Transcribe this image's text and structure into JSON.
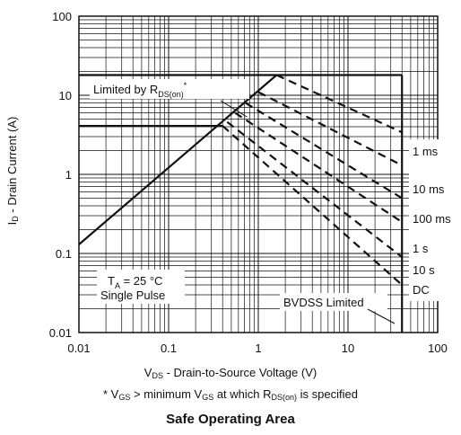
{
  "chart_data": {
    "type": "line",
    "title": "",
    "caption": "Safe Operating Area",
    "xlabel": {
      "var": "V",
      "sub": "DS",
      "text": " - Drain-to-Source Voltage (V)"
    },
    "ylabel": {
      "var": "I",
      "sub": "D",
      "text": " - Drain Current (A)"
    },
    "footnote": {
      "p1": "* V",
      "s1": "GS",
      "p2": " > minimum V",
      "s2": "GS",
      "p3": " at which R",
      "s3": "DS(on)",
      "p4": " is specified"
    },
    "x_scale": "log",
    "y_scale": "log",
    "xlim": [
      0.01,
      100
    ],
    "ylim": [
      0.01,
      100
    ],
    "grid": true,
    "x_ticks": [
      0.01,
      0.1,
      1,
      10,
      100
    ],
    "x_tick_labels": [
      "0.01",
      "0.1",
      "1",
      "10",
      "100"
    ],
    "y_ticks": [
      0.01,
      0.1,
      1,
      10,
      100
    ],
    "y_tick_labels": [
      "0.01",
      "0.1",
      "1",
      "10",
      "100"
    ],
    "series": [
      {
        "name": "Limited by RDS(on)",
        "style": "solid",
        "points": [
          [
            0.01,
            0.13
          ],
          [
            1.6,
            18
          ]
        ]
      },
      {
        "name": "1 ms",
        "style": "dashed",
        "points": [
          [
            1.6,
            18
          ],
          [
            40,
            3.4
          ]
        ]
      },
      {
        "name": "10 ms",
        "style": "dashed",
        "points": [
          [
            1.0,
            11
          ],
          [
            40,
            1.3
          ]
        ]
      },
      {
        "name": "100 ms",
        "style": "dashed",
        "points": [
          [
            0.72,
            8
          ],
          [
            40,
            0.5
          ]
        ]
      },
      {
        "name": "1 s",
        "style": "dashed",
        "points": [
          [
            0.55,
            6
          ],
          [
            40,
            0.25
          ]
        ]
      },
      {
        "name": "10 s",
        "style": "dashed",
        "points": [
          [
            0.45,
            4.6
          ],
          [
            40,
            0.09
          ]
        ]
      },
      {
        "name": "DC",
        "style": "dashed",
        "points": [
          [
            0.4,
            4.1
          ],
          [
            40,
            0.04
          ]
        ]
      }
    ],
    "limit_lines": [
      {
        "kind": "current",
        "y": 18,
        "x_from": 0.01,
        "x_to": 40
      },
      {
        "kind": "current",
        "y": 4.1,
        "x_from": 0.01,
        "x_to": 0.4
      },
      {
        "kind": "voltage",
        "name": "BVDSS Limited",
        "x": 40,
        "y_from": 0.01,
        "y_to": 18
      }
    ],
    "annotations": {
      "rds": {
        "prefix": "Limited by R",
        "sub": "DS(on)",
        "suffix": "*"
      },
      "bvdss": "BVDSS Limited",
      "ta": {
        "prefix": "T",
        "sub": "A",
        "suffix": " = 25 °C"
      },
      "pulse": "Single Pulse"
    },
    "curve_labels": [
      "1 ms",
      "10 ms",
      "100 ms",
      "1 s",
      "10 s",
      "DC"
    ]
  }
}
